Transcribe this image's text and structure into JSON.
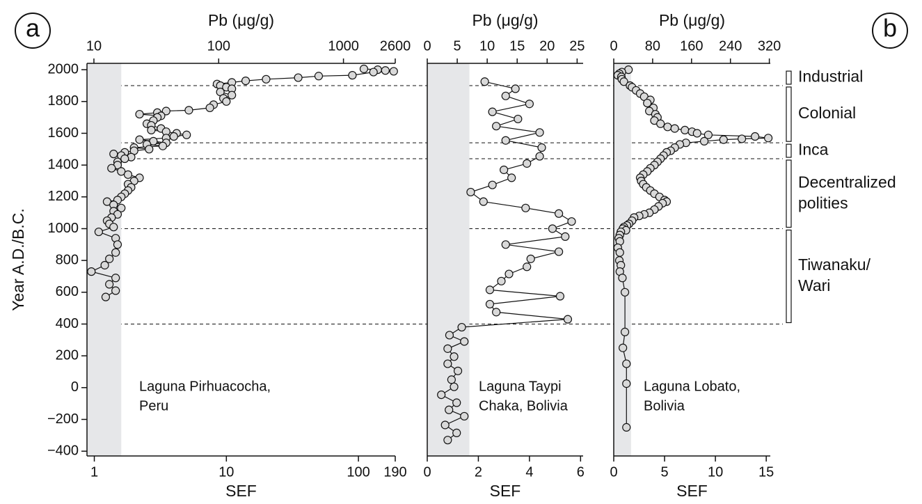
{
  "chart_data": [
    {
      "type": "line",
      "xscale": "log",
      "xlabel": "SEF",
      "x2label": "Pb (μg/g)",
      "xlim": [
        0.88,
        190
      ],
      "xticks": [
        1,
        10,
        100,
        190
      ],
      "x2lim": [
        8.8,
        2600
      ],
      "x2ticks": [
        10,
        100,
        1000,
        2600
      ],
      "ylabel": "Year A.D./B.C.",
      "ylim": [
        -430,
        2040
      ],
      "yticks": [
        {
          "value": -400,
          "label": "−400"
        },
        {
          "value": -200,
          "label": "−200"
        },
        0,
        200,
        400,
        600,
        800,
        1000,
        1200,
        1400,
        1600,
        1800,
        2000
      ],
      "shaded_below": 1.6,
      "color": "#d9d9d9",
      "annotation": [
        "Laguna Pirhuacocha,",
        "Peru"
      ],
      "years": [
        2005,
        2000,
        1995,
        1990,
        1985,
        1965,
        1960,
        1950,
        1940,
        1930,
        1920,
        1910,
        1900,
        1890,
        1880,
        1860,
        1840,
        1820,
        1800,
        1780,
        1760,
        1745,
        1740,
        1730,
        1720,
        1710,
        1700,
        1680,
        1660,
        1650,
        1630,
        1620,
        1610,
        1600,
        1590,
        1580,
        1570,
        1560,
        1550,
        1540,
        1530,
        1520,
        1510,
        1500,
        1490,
        1480,
        1470,
        1460,
        1450,
        1440,
        1420,
        1400,
        1380,
        1360,
        1340,
        1320,
        1300,
        1280,
        1260,
        1240,
        1220,
        1200,
        1180,
        1170,
        1150,
        1130,
        1110,
        1090,
        1070,
        1050,
        1030,
        1010,
        980,
        940,
        900,
        850,
        810,
        770,
        730,
        690,
        650,
        610,
        570
      ],
      "values": [
        110,
        140,
        160,
        185,
        130,
        90,
        50,
        35,
        20,
        14,
        11,
        8.5,
        9,
        10,
        11,
        9,
        11,
        9.5,
        10,
        8,
        7.5,
        5.2,
        3.5,
        3,
        2.2,
        3.2,
        3,
        2.8,
        2.5,
        2.7,
        3.2,
        2.7,
        3.5,
        4.2,
        5,
        4,
        3.5,
        2.2,
        2.8,
        3.5,
        2.5,
        3.3,
        2,
        2.6,
        2,
        1.7,
        1.4,
        1.6,
        1.9,
        1.7,
        1.5,
        1.5,
        1.35,
        1.6,
        1.8,
        2.2,
        2,
        1.8,
        1.9,
        1.8,
        1.7,
        1.6,
        1.5,
        1.25,
        1.4,
        1.6,
        1.4,
        1.5,
        1.35,
        1.25,
        1.3,
        1.4,
        1.08,
        1.45,
        1.5,
        1.45,
        1.3,
        1.2,
        0.95,
        1.45,
        1.3,
        1.45,
        1.22
      ]
    },
    {
      "type": "line",
      "xscale": "linear",
      "xlabel": "SEF",
      "x2label": "Pb (μg/g)",
      "xlim": [
        0,
        6.1
      ],
      "xticks": [
        0,
        2,
        4,
        6
      ],
      "x2lim": [
        0,
        26
      ],
      "x2ticks": [
        0,
        5,
        10,
        15,
        20,
        25
      ],
      "shaded_below": 1.65,
      "color": "#d9d9d9",
      "annotation": [
        "Laguna Taypi",
        "Chaka, Bolivia"
      ],
      "years": [
        1925,
        1880,
        1835,
        1785,
        1735,
        1690,
        1645,
        1605,
        1555,
        1510,
        1455,
        1410,
        1370,
        1320,
        1275,
        1230,
        1170,
        1130,
        1095,
        1045,
        1000,
        950,
        900,
        855,
        810,
        760,
        715,
        670,
        615,
        575,
        525,
        475,
        430,
        380,
        330,
        290,
        245,
        195,
        150,
        105,
        50,
        5,
        -45,
        -95,
        -140,
        -180,
        -235,
        -285,
        -330
      ],
      "values": [
        2.25,
        3.45,
        3.07,
        4.0,
        2.55,
        3.55,
        2.7,
        4.4,
        3.07,
        4.48,
        4.4,
        3.9,
        3.0,
        3.3,
        2.55,
        1.7,
        2.2,
        3.85,
        5.15,
        5.65,
        4.9,
        5.4,
        3.07,
        5.15,
        4.05,
        3.9,
        3.2,
        2.9,
        2.45,
        5.2,
        2.45,
        2.7,
        5.5,
        1.35,
        0.87,
        1.45,
        0.8,
        1.05,
        0.8,
        1.2,
        0.95,
        1.05,
        0.55,
        1.15,
        0.85,
        1.45,
        0.7,
        1.15,
        0.8
      ]
    },
    {
      "type": "line",
      "xscale": "linear",
      "xlabel": "SEF",
      "x2label": "Pb (μg/g)",
      "xlim": [
        0,
        15.4
      ],
      "xticks": [
        0,
        5,
        10,
        15
      ],
      "x2lim": [
        0,
        322
      ],
      "x2ticks": [
        0,
        80,
        160,
        240,
        320
      ],
      "shaded_below": 1.7,
      "color": "#d9d9d9",
      "annotation": [
        "Laguna Lobato,",
        "Bolivia"
      ],
      "years": [
        2000,
        1985,
        1975,
        1965,
        1955,
        1940,
        1925,
        1900,
        1890,
        1870,
        1850,
        1830,
        1810,
        1790,
        1760,
        1740,
        1720,
        1700,
        1680,
        1660,
        1640,
        1630,
        1620,
        1610,
        1600,
        1590,
        1580,
        1570,
        1565,
        1560,
        1550,
        1540,
        1530,
        1510,
        1490,
        1480,
        1460,
        1440,
        1420,
        1400,
        1380,
        1360,
        1340,
        1320,
        1300,
        1280,
        1260,
        1240,
        1220,
        1200,
        1180,
        1170,
        1160,
        1140,
        1120,
        1100,
        1090,
        1080,
        1070,
        1050,
        1030,
        1020,
        1010,
        1000,
        990,
        980,
        960,
        940,
        920,
        880,
        850,
        800,
        770,
        730,
        690,
        600,
        350,
        250,
        150,
        25,
        -250
      ],
      "values": [
        1.45,
        0.8,
        0.55,
        0.4,
        0.75,
        0.8,
        1.0,
        1.6,
        1.8,
        2.2,
        2.6,
        3.0,
        3.6,
        3.3,
        3.9,
        3.5,
        4.1,
        4.3,
        4.0,
        4.6,
        5.3,
        6.0,
        7.0,
        7.7,
        8.2,
        9.3,
        13.9,
        15.2,
        12.6,
        10.8,
        8.9,
        7.1,
        6.5,
        6.0,
        5.6,
        5.2,
        4.9,
        4.6,
        4.3,
        4.0,
        3.6,
        3.3,
        2.9,
        2.6,
        2.7,
        2.9,
        3.2,
        3.6,
        4.0,
        4.5,
        5.0,
        5.2,
        4.8,
        4.4,
        4.0,
        3.5,
        3.0,
        2.5,
        2.0,
        1.8,
        1.5,
        1.3,
        1.0,
        0.9,
        1.2,
        0.7,
        0.6,
        0.5,
        0.6,
        0.4,
        0.6,
        0.55,
        0.7,
        0.6,
        0.85,
        1.1,
        1.1,
        0.9,
        1.25,
        1.25,
        1.25
      ]
    }
  ],
  "period_boundaries": [
    1900,
    1540,
    1440,
    1000,
    400
  ],
  "periods": [
    {
      "name": [
        "Industrial"
      ],
      "start": 1900,
      "end": 2000
    },
    {
      "name": [
        "Colonial"
      ],
      "start": 1540,
      "end": 1900
    },
    {
      "name": [
        "Inca"
      ],
      "start": 1440,
      "end": 1540
    },
    {
      "name": [
        "Decentralized",
        "polities"
      ],
      "start": 1000,
      "end": 1440
    },
    {
      "name": [
        "Tiwanaku/",
        "Wari"
      ],
      "start": 400,
      "end": 1000
    }
  ],
  "panel_labels": [
    "a",
    "b"
  ]
}
